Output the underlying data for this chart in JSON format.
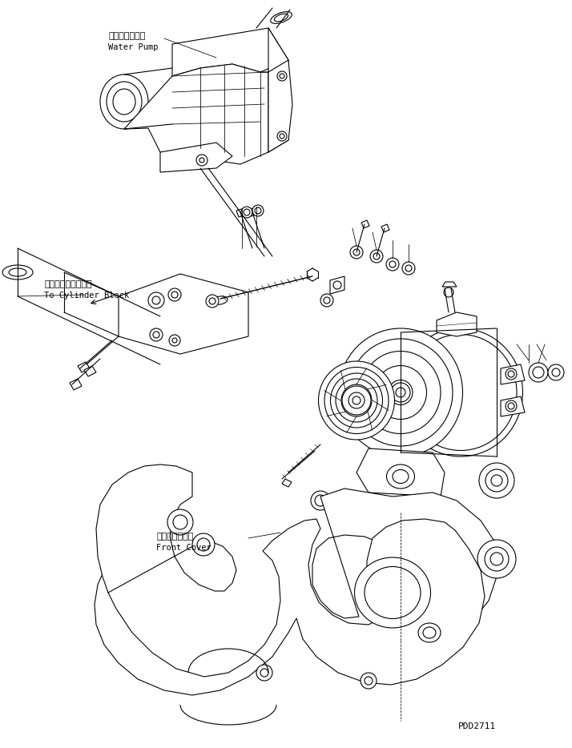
{
  "bg_color": "#ffffff",
  "line_color": "#000000",
  "lw": 0.8,
  "fig_width": 7.14,
  "fig_height": 9.34,
  "dpi": 100,
  "labels": {
    "water_pump_jp": "ウォータポンプ",
    "water_pump_en": "Water Pump",
    "cylinder_block_jp": "シリンダブロックヘ",
    "cylinder_block_en": "To Cylinder Block",
    "front_cover_jp": "フロントカバー",
    "front_cover_en": "Front Cover",
    "part_number": "PDD2711"
  }
}
